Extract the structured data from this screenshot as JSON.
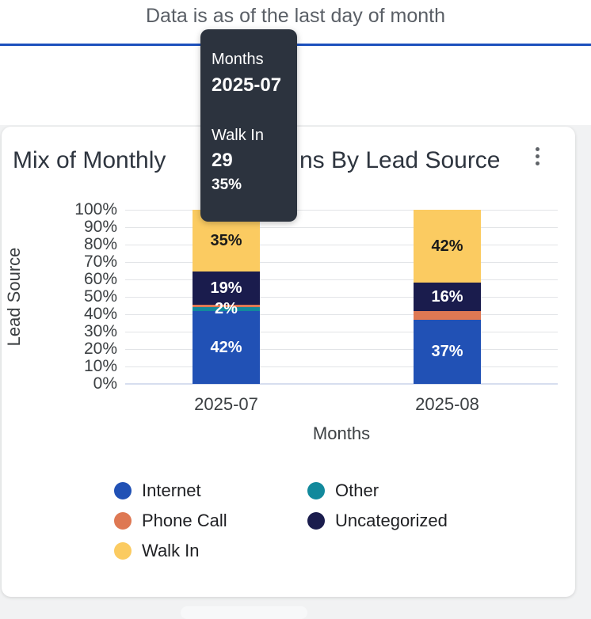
{
  "banner": {
    "text": "Data is as of the last day of month"
  },
  "card": {
    "title_left": "Mix of Monthly",
    "title_right": "ns By Lead Source",
    "menu_icon": "kebab-menu"
  },
  "tooltip": {
    "axis_label": "Months",
    "axis_value": "2025-07",
    "series_name": "Walk In",
    "series_count": "29",
    "series_percent": "35%"
  },
  "chart_data": {
    "type": "bar",
    "subtype": "100%-stacked-vertical",
    "xlabel": "Months",
    "ylabel": "Lead Source",
    "categories": [
      "2025-07",
      "2025-08"
    ],
    "y_ticks": [
      "100%",
      "90%",
      "80%",
      "70%",
      "60%",
      "50%",
      "40%",
      "30%",
      "20%",
      "10%",
      "0%"
    ],
    "ylim": [
      0,
      100
    ],
    "grid": true,
    "legend_position": "bottom",
    "series": [
      {
        "name": "Internet",
        "color": "#2151B5",
        "values": [
          42,
          37
        ],
        "labels": [
          "42%",
          "37%"
        ],
        "label_color": "#FFFFFF"
      },
      {
        "name": "Other",
        "color": "#12899C",
        "values": [
          2,
          0
        ],
        "labels": [
          "2%",
          null
        ],
        "label_color": "#FFFFFF"
      },
      {
        "name": "Phone Call",
        "color": "#DE7853",
        "values": [
          1.5,
          5
        ],
        "labels": [
          null,
          null
        ],
        "label_color": "#FFFFFF"
      },
      {
        "name": "Uncategorized",
        "color": "#1A1C4D",
        "values": [
          19,
          16
        ],
        "labels": [
          "19%",
          "16%"
        ],
        "label_color": "#FFFFFF"
      },
      {
        "name": "Walk In",
        "color": "#FBCB61",
        "values": [
          35.5,
          42
        ],
        "labels": [
          "35%",
          "42%"
        ],
        "label_color": "#1A1A1A"
      }
    ],
    "legend": [
      {
        "label": "Internet",
        "color": "#2151B5"
      },
      {
        "label": "Other",
        "color": "#12899C"
      },
      {
        "label": "Phone Call",
        "color": "#DE7853"
      },
      {
        "label": "Uncategorized",
        "color": "#1A1C4D"
      },
      {
        "label": "Walk In",
        "color": "#FBCB61"
      }
    ],
    "tooltip_values": {
      "month": "2025-07",
      "series": "Walk In",
      "count": 29,
      "percent": 35
    }
  },
  "colors": {
    "accent_line": "#1B50BD",
    "tooltip_bg": "#2C333E",
    "page_bg": "#F1F2F3",
    "card_bg": "#FFFFFF"
  }
}
